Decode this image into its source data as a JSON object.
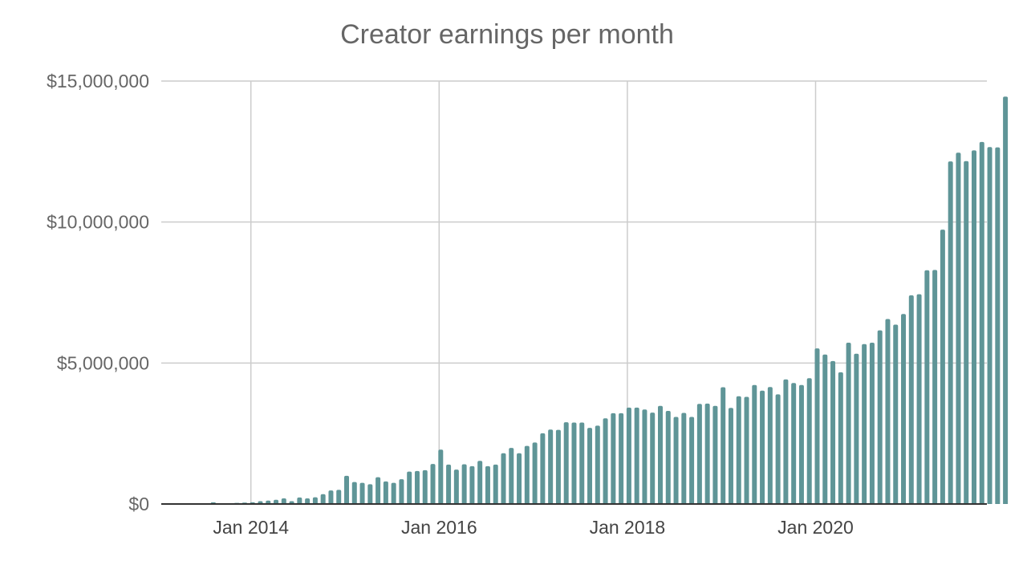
{
  "chart_data": {
    "type": "bar",
    "title": "Creator earnings per month",
    "xlabel": "",
    "ylabel": "",
    "ylim": [
      0,
      15000000
    ],
    "yticks": [
      {
        "value": 0,
        "label": "$0"
      },
      {
        "value": 5000000,
        "label": "$5,000,000"
      },
      {
        "value": 10000000,
        "label": "$10,000,000"
      },
      {
        "value": 15000000,
        "label": "$15,000,000"
      }
    ],
    "xticks": [
      {
        "month": "2014-01",
        "label": "Jan 2014"
      },
      {
        "month": "2016-01",
        "label": "Jan 2016"
      },
      {
        "month": "2018-01",
        "label": "Jan 2018"
      },
      {
        "month": "2020-01",
        "label": "Jan 2020"
      }
    ],
    "grid": true,
    "series": [
      {
        "name": "Creator earnings",
        "color": "#5f9597"
      }
    ],
    "start_month": "2013-05",
    "values": [
      0,
      0,
      0,
      60000,
      0,
      0,
      40000,
      50000,
      60000,
      100000,
      120000,
      150000,
      200000,
      100000,
      230000,
      200000,
      240000,
      350000,
      480000,
      500000,
      1000000,
      780000,
      750000,
      700000,
      950000,
      800000,
      750000,
      880000,
      1150000,
      1170000,
      1200000,
      1420000,
      1930000,
      1400000,
      1220000,
      1410000,
      1340000,
      1530000,
      1340000,
      1400000,
      1800000,
      1990000,
      1800000,
      2060000,
      2180000,
      2510000,
      2640000,
      2630000,
      2900000,
      2890000,
      2890000,
      2700000,
      2780000,
      3040000,
      3220000,
      3220000,
      3420000,
      3420000,
      3350000,
      3240000,
      3480000,
      3300000,
      3090000,
      3230000,
      3090000,
      3550000,
      3560000,
      3480000,
      4140000,
      3410000,
      3820000,
      3800000,
      4220000,
      4020000,
      4150000,
      3890000,
      4420000,
      4290000,
      4220000,
      4460000,
      5520000,
      5300000,
      5070000,
      4670000,
      5720000,
      5330000,
      5670000,
      5720000,
      6160000,
      6560000,
      6360000,
      6740000,
      7400000,
      7440000,
      8290000,
      8300000,
      9730000,
      12150000,
      12460000,
      12160000,
      12540000,
      12840000,
      12660000,
      12650000,
      14450000
    ]
  }
}
